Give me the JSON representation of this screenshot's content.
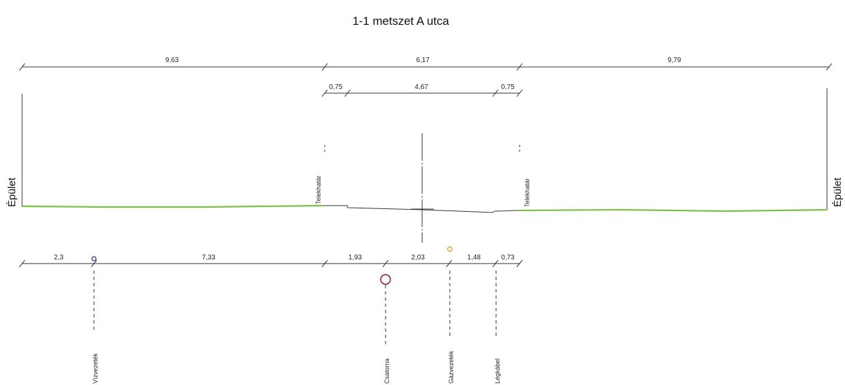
{
  "title": "1-1 metszet A utca",
  "side_labels": {
    "left": "Épület",
    "right": "Épület"
  },
  "boundary_labels": {
    "left": "Telekhatár",
    "right": "Telekhatár"
  },
  "top_dimensions": [
    "9,63",
    "6,17",
    "9,79"
  ],
  "mid_dimensions": [
    "0,75",
    "4,67",
    "0,75"
  ],
  "bottom_dimensions": [
    "2,3",
    "7,33",
    "1,93",
    "2,03",
    "1,48",
    "0,73"
  ],
  "utilities": {
    "water": "Vízvezeték",
    "sewer": "Csatorna",
    "gas": "Gázvezeték",
    "cable": "Légkábel"
  },
  "colors": {
    "ground": "#7bc043",
    "water_marker": "#2b3a8c",
    "sewer_marker": "#8b1a1a",
    "gas_marker": "#e0a030"
  }
}
